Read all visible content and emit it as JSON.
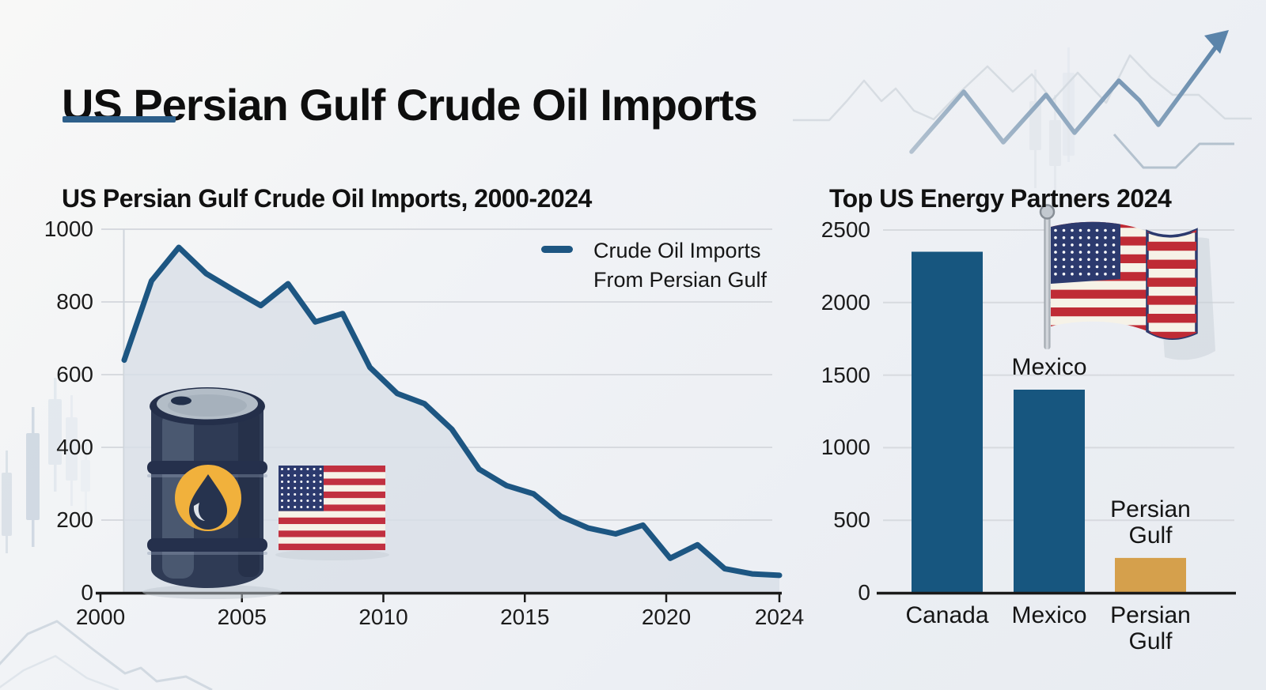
{
  "page": {
    "main_title": "US Persian Gulf Crude Oil Imports"
  },
  "colors": {
    "accent_blue": "#1d5682",
    "area_fill": "#d8dfe7",
    "bar_blue": "#17567f",
    "bar_gold": "#d5a04c",
    "underline_blue": "#2d5f8a",
    "axis_dark": "#1a1a1a",
    "grid_gray": "#d7dadf",
    "flag_red": "#bf2b35",
    "flag_navy": "#2c3a6e",
    "barrel_navy": "#2f3b55",
    "badge_yellow": "#f1b13c"
  },
  "icons": [
    "oil-barrel-icon",
    "us-flag-icon",
    "waving-us-flag-icon",
    "trend-arrow-icon",
    "candlestick-icon"
  ],
  "chart_data": [
    {
      "type": "area",
      "title": "US Persian Gulf Crude Oil Imports, 2000-2024",
      "series_name": "Crude Oil Imports From Persian Gulf",
      "legend_lines": [
        "Crude Oil Imports",
        "From Persian Gulf"
      ],
      "legend_position": "upper right",
      "grid": true,
      "xlabel": "",
      "ylabel": "",
      "ylim": [
        0,
        1000
      ],
      "y_ticks": [
        0,
        200,
        400,
        600,
        800,
        1000
      ],
      "x_tick_labels": [
        "2000",
        "2005",
        "2010",
        "2015",
        "2020",
        "2024"
      ],
      "x_tick_years": [
        2000,
        2005,
        2010,
        2015,
        2020,
        2024
      ],
      "x": [
        2000,
        2001,
        2002,
        2003,
        2004,
        2005,
        2006,
        2007,
        2008,
        2009,
        2010,
        2011,
        2012,
        2013,
        2014,
        2015,
        2016,
        2017,
        2018,
        2019,
        2020,
        2021,
        2022,
        2023,
        2024
      ],
      "values": [
        640,
        858,
        950,
        878,
        833,
        790,
        850,
        745,
        768,
        620,
        548,
        520,
        450,
        340,
        295,
        272,
        210,
        178,
        162,
        186,
        95,
        132,
        66,
        52,
        48
      ]
    },
    {
      "type": "bar",
      "title": "Top US Energy Partners 2024",
      "categories": [
        "Canada",
        "Mexico",
        "Persian Gulf"
      ],
      "categories_lines": [
        [
          "Canada"
        ],
        [
          "Mexico"
        ],
        [
          "Persian",
          "Gulf"
        ]
      ],
      "values": [
        2350,
        1400,
        240
      ],
      "bar_colors": [
        "#17567f",
        "#17567f",
        "#d5a04c"
      ],
      "bar_top_labels_lines": [
        [],
        [
          "Mexico"
        ],
        [
          "Persian",
          "Gulf"
        ]
      ],
      "grid": true,
      "ylim": [
        0,
        2500
      ],
      "y_ticks": [
        0,
        500,
        1000,
        1500,
        2000,
        2500
      ]
    }
  ]
}
